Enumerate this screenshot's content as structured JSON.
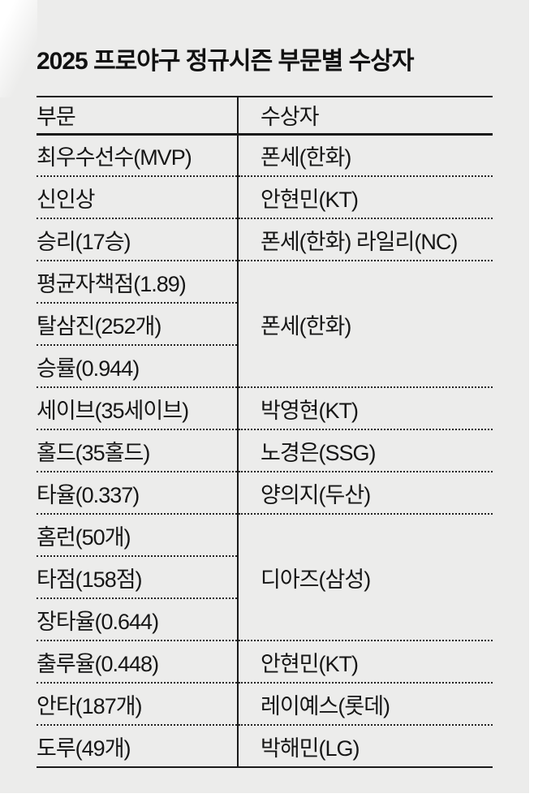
{
  "page": {
    "background_color": "#ececeb",
    "line_color": "#1a1a1a",
    "text_color": "#161616"
  },
  "title": "2025 프로야구 정규시즌 부문별 수상자",
  "table": {
    "headers": {
      "category": "부문",
      "winner": "수상자"
    },
    "rows": [
      {
        "category": "최우수선수(MVP)",
        "winner": "폰세(한화)"
      },
      {
        "category": "신인상",
        "winner": "안현민(KT)"
      },
      {
        "category": "승리(17승)",
        "winner": "폰세(한화) 라일리(NC)"
      },
      {
        "categories": [
          "평균자책점(1.89)",
          "탈삼진(252개)",
          "승률(0.944)"
        ],
        "winner": "폰세(한화)"
      },
      {
        "category": "세이브(35세이브)",
        "winner": "박영현(KT)"
      },
      {
        "category": "홀드(35홀드)",
        "winner": "노경은(SSG)"
      },
      {
        "category": "타율(0.337)",
        "winner": "양의지(두산)"
      },
      {
        "categories": [
          "홈런(50개)",
          "타점(158점)",
          "장타율(0.644)"
        ],
        "winner": "디아즈(삼성)"
      },
      {
        "category": "출루율(0.448)",
        "winner": "안현민(KT)"
      },
      {
        "category": "안타(187개)",
        "winner": "레이예스(롯데)"
      },
      {
        "category": "도루(49개)",
        "winner": "박해민(LG)"
      }
    ]
  },
  "chart_data": {
    "type": "table",
    "title": "2025 프로야구 정규시즌 부문별 수상자",
    "columns": [
      "부문",
      "수상자"
    ],
    "rows": [
      [
        "최우수선수(MVP)",
        "폰세(한화)"
      ],
      [
        "신인상",
        "안현민(KT)"
      ],
      [
        "승리(17승)",
        "폰세(한화) 라일리(NC)"
      ],
      [
        "평균자책점(1.89)",
        "폰세(한화)"
      ],
      [
        "탈삼진(252개)",
        "폰세(한화)"
      ],
      [
        "승률(0.944)",
        "폰세(한화)"
      ],
      [
        "세이브(35세이브)",
        "박영현(KT)"
      ],
      [
        "홀드(35홀드)",
        "노경은(SSG)"
      ],
      [
        "타율(0.337)",
        "양의지(두산)"
      ],
      [
        "홈런(50개)",
        "디아즈(삼성)"
      ],
      [
        "타점(158점)",
        "디아즈(삼성)"
      ],
      [
        "장타율(0.644)",
        "디아즈(삼성)"
      ],
      [
        "출루율(0.448)",
        "안현민(KT)"
      ],
      [
        "안타(187개)",
        "레이예스(롯데)"
      ],
      [
        "도루(49개)",
        "박해민(LG)"
      ]
    ],
    "merged_winner_groups": [
      {
        "winner": "폰세(한화)",
        "categories": [
          "평균자책점(1.89)",
          "탈삼진(252개)",
          "승률(0.944)"
        ]
      },
      {
        "winner": "디아즈(삼성)",
        "categories": [
          "홈런(50개)",
          "타점(158점)",
          "장타율(0.644)"
        ]
      }
    ],
    "layout": {
      "grid": "dotted-row-separators",
      "header_rule": "solid",
      "legend": "none"
    }
  }
}
